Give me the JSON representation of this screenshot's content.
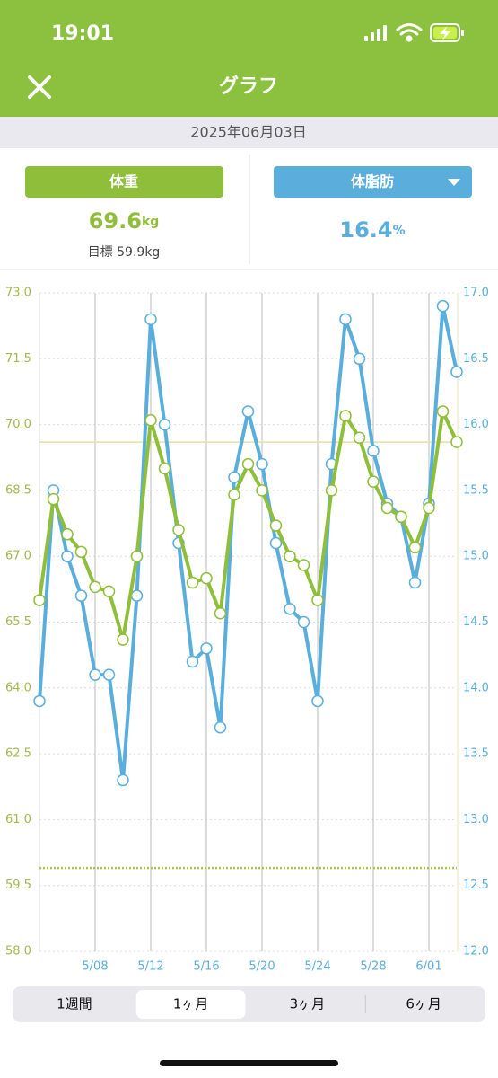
{
  "status_bar": {
    "time": "19:01"
  },
  "header": {
    "title": "グラフ"
  },
  "date": "2025年06月03日",
  "weight": {
    "value": 69.6,
    "unit": "kg",
    "goal_label": "目標",
    "goal": 59.9,
    "goal_unit": "kg"
  },
  "body_fat": {
    "value": 16.4,
    "unit": "%"
  },
  "chart_data": {
    "type": "line",
    "categories": [
      null,
      null,
      null,
      null,
      "5/08",
      null,
      null,
      null,
      "5/12",
      null,
      null,
      null,
      "5/16",
      null,
      null,
      null,
      "5/20",
      null,
      null,
      null,
      "5/24",
      null,
      null,
      null,
      "5/28",
      null,
      null,
      null,
      "6/01",
      null,
      null
    ],
    "series": [
      {
        "name": "体重",
        "color": "#8fbe3a",
        "values": [
          66.0,
          68.3,
          67.5,
          67.1,
          66.3,
          66.2,
          65.1,
          67.0,
          70.1,
          69.0,
          67.6,
          66.4,
          66.5,
          65.7,
          68.4,
          69.1,
          68.5,
          67.7,
          67.0,
          66.8,
          66.0,
          68.5,
          70.2,
          69.7,
          68.7,
          68.1,
          67.9,
          67.2,
          68.1,
          70.3,
          69.6
        ]
      },
      {
        "name": "体脂肪",
        "color": "#5aaedc",
        "axis": "y2",
        "values": [
          13.9,
          15.5,
          15.0,
          14.7,
          14.1,
          14.1,
          13.3,
          14.7,
          16.8,
          16.0,
          15.1,
          14.2,
          14.3,
          13.7,
          15.6,
          16.1,
          15.7,
          15.1,
          14.6,
          14.5,
          13.9,
          15.7,
          16.8,
          16.5,
          15.8,
          15.4,
          15.3,
          14.8,
          15.4,
          16.9,
          16.4
        ]
      }
    ],
    "ylim": [
      58,
      73
    ],
    "yticks": [
      {
        "value": 58,
        "label": "58.0"
      },
      59.5,
      {
        "value": 61,
        "label": "61.0"
      },
      62.5,
      {
        "value": 64,
        "label": "64.0"
      },
      65.5,
      {
        "value": 67,
        "label": "67.0"
      },
      68.5,
      {
        "value": 70,
        "label": "70.0"
      },
      71.5,
      {
        "value": 73,
        "label": "73.0"
      }
    ],
    "y2lim": [
      12,
      17
    ],
    "y2ticks": [
      {
        "value": 12,
        "label": "12.0"
      },
      12.5,
      {
        "value": 13,
        "label": "13.0"
      },
      13.5,
      {
        "value": 14,
        "label": "14.0"
      },
      14.5,
      {
        "value": 15,
        "label": "15.0"
      },
      15.5,
      {
        "value": 16,
        "label": "16.0"
      },
      16.5,
      {
        "value": 17,
        "label": "17.0"
      }
    ],
    "grid": true
  },
  "tabs": {
    "items": [
      "1週間",
      "1ヶ月",
      "3ヶ月",
      "6ヶ月"
    ],
    "selected": 1
  }
}
